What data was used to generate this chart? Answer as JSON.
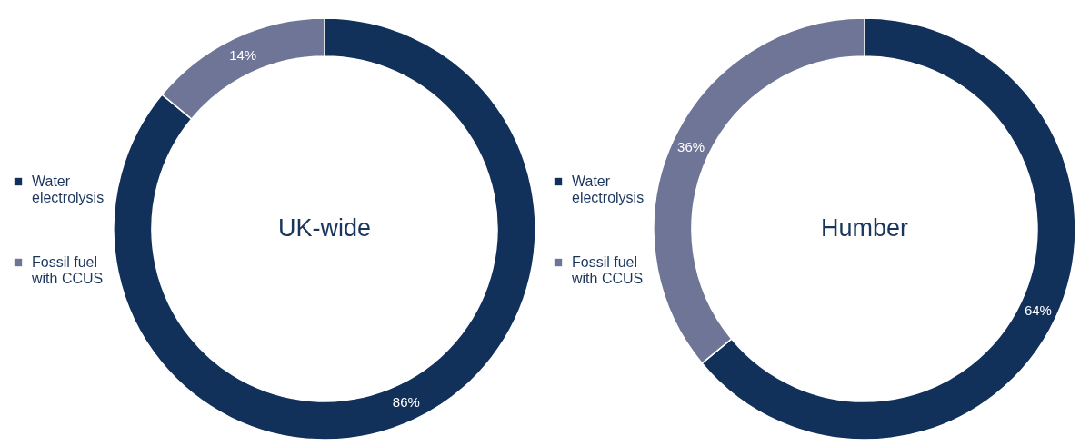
{
  "chart_data": [
    {
      "type": "donut",
      "title": "UK-wide",
      "categories": [
        "Water electrolysis",
        "Fossil fuel with CCUS"
      ],
      "values": [
        86,
        14
      ],
      "colors": [
        "#11305a",
        "#6e7597"
      ],
      "value_labels": [
        "86%",
        "14%"
      ],
      "legend": "left"
    },
    {
      "type": "donut",
      "title": "Humber",
      "categories": [
        "Water electrolysis",
        "Fossil fuel with CCUS"
      ],
      "values": [
        64,
        36
      ],
      "colors": [
        "#11305a",
        "#6e7597"
      ],
      "value_labels": [
        "64%",
        "36%"
      ],
      "legend": "left"
    }
  ]
}
